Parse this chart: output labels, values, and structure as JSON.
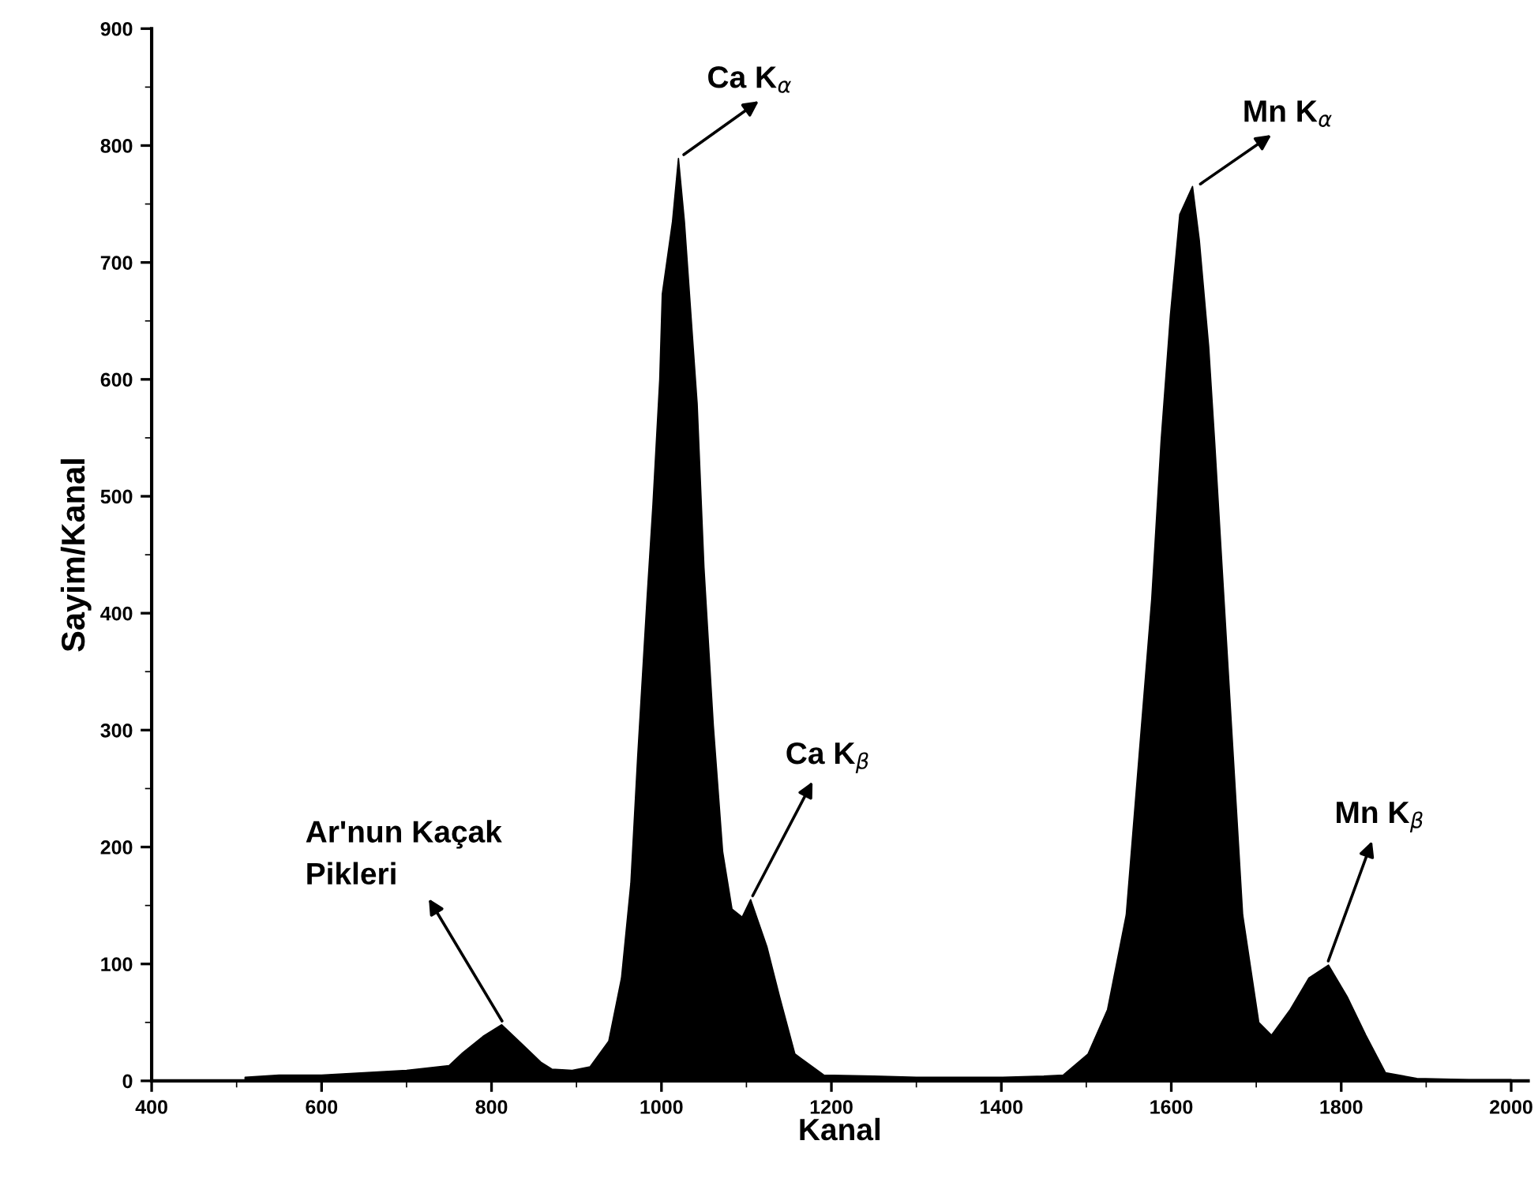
{
  "chart_data": {
    "type": "area",
    "xlabel": "Kanal",
    "ylabel": "Sayim/Kanal",
    "xlim": [
      400,
      2020
    ],
    "ylim": [
      0,
      900
    ],
    "xticks": [
      400,
      600,
      800,
      1000,
      1200,
      1400,
      1600,
      1800,
      2000
    ],
    "yticks": [
      0,
      100,
      200,
      300,
      400,
      500,
      600,
      700,
      800,
      900
    ],
    "grid": false,
    "legend": false,
    "series": [
      {
        "color": "#000000",
        "x": [
          510,
          550,
          600,
          650,
          700,
          750,
          766,
          790,
          812,
          835,
          858,
          871,
          895,
          916,
          938,
          953,
          964,
          972,
          983,
          990,
          998,
          1001,
          1013,
          1020,
          1027,
          1042,
          1050,
          1061,
          1072,
          1083,
          1095,
          1105,
          1124,
          1139,
          1157,
          1191,
          1250,
          1300,
          1350,
          1400,
          1450,
          1473,
          1502,
          1525,
          1547,
          1562,
          1577,
          1588,
          1599,
          1610,
          1625,
          1633,
          1644,
          1651,
          1662,
          1673,
          1684,
          1703,
          1718,
          1740,
          1762,
          1785,
          1807,
          1829,
          1852,
          1889,
          1950,
          2000
        ],
        "values": [
          3,
          5,
          5,
          7,
          9,
          13,
          24,
          38,
          48,
          32,
          16,
          10,
          9,
          12,
          34,
          88,
          169,
          277,
          412,
          493,
          600,
          673,
          735,
          789,
          735,
          579,
          439,
          304,
          196,
          147,
          140,
          155,
          115,
          72,
          23,
          5,
          4,
          3,
          3,
          3,
          4,
          5,
          23,
          61,
          142,
          277,
          412,
          547,
          655,
          741,
          765,
          719,
          628,
          547,
          412,
          277,
          142,
          50,
          39,
          61,
          88,
          99,
          72,
          39,
          7,
          2,
          1,
          1
        ]
      }
    ],
    "annotations": [
      {
        "text": "Ca K$_{α}$",
        "x": 1022,
        "y": 790
      },
      {
        "text": "Mn K$_{α}$",
        "x": 1630,
        "y": 765
      },
      {
        "text": "Ca K$_{β}$",
        "x": 1105,
        "y": 155
      },
      {
        "text": "Mn K$_{β}$",
        "x": 1783,
        "y": 99
      },
      {
        "text": "Ar'nun Kaçak\nPikleri",
        "x": 815,
        "y": 48
      }
    ]
  }
}
